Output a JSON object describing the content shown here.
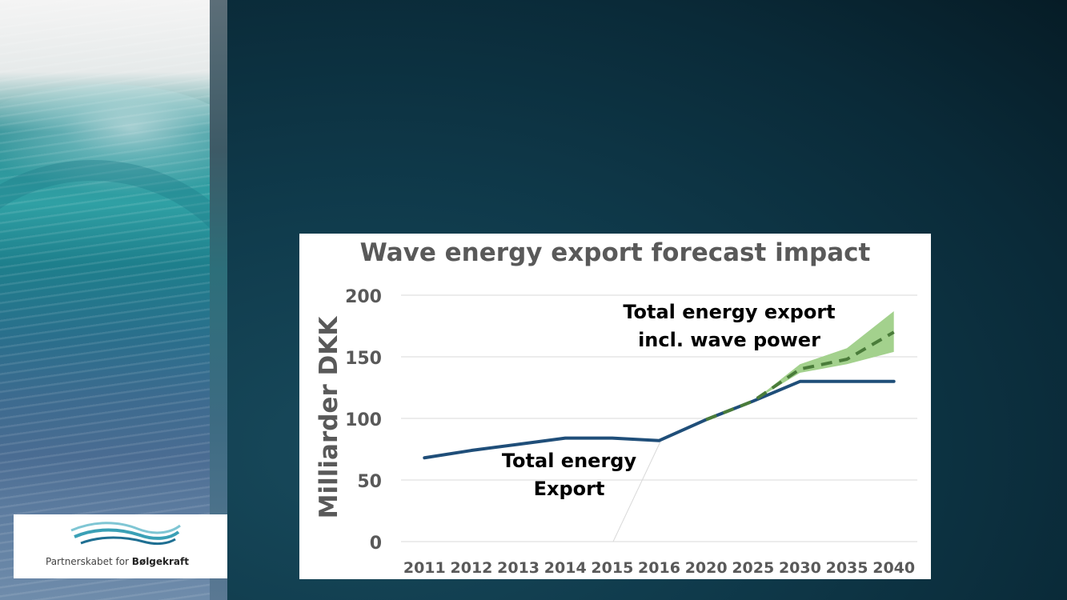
{
  "branding": {
    "logo_prefix": "Partnerskabet for ",
    "logo_bold": "Bølgekraft"
  },
  "chart_data": {
    "type": "line",
    "title": "Wave energy export forecast impact",
    "xlabel": "",
    "ylabel": "Milliarder DKK",
    "ylim": [
      0,
      200
    ],
    "yticks": [
      "0",
      "50",
      "100",
      "150",
      "200"
    ],
    "categories": [
      "2011",
      "2012",
      "2013",
      "2014",
      "2015",
      "2016",
      "2020",
      "2025",
      "2030",
      "2035",
      "2040"
    ],
    "grid": true,
    "legend": "none",
    "series": [
      {
        "name": "",
        "values": [
          68,
          74,
          79,
          84,
          84,
          82,
          99,
          114,
          130,
          130,
          130
        ],
        "color": "#1f4e79"
      },
      {
        "name": "",
        "values": [
          null,
          null,
          null,
          null,
          null,
          null,
          99,
          114,
          140,
          148,
          170
        ],
        "range_low": [
          null,
          null,
          null,
          null,
          null,
          null,
          99,
          114,
          137,
          144,
          154
        ],
        "range_high": [
          null,
          null,
          null,
          null,
          null,
          null,
          99,
          114,
          144,
          157,
          187
        ],
        "color": "#4a7c3a",
        "band_color": "#a3d18d",
        "style": "dashed"
      }
    ],
    "annotations": [
      {
        "lines": [
          "Total energy export",
          "incl. wave power"
        ]
      },
      {
        "lines": [
          "Total energy",
          "Export"
        ]
      }
    ]
  }
}
